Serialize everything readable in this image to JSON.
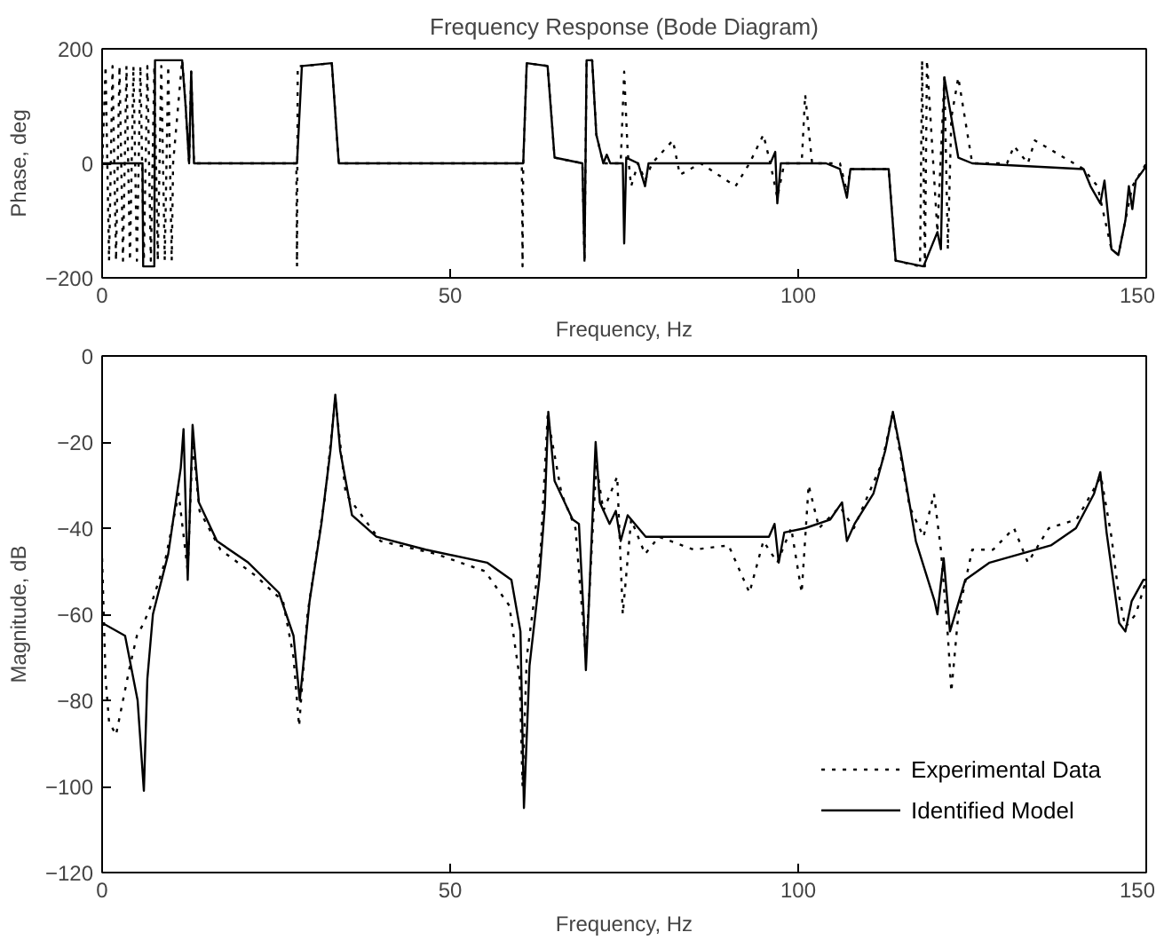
{
  "chart_data": [
    {
      "type": "line",
      "title": "Frequency Response (Bode Diagram)",
      "xlabel": "Frequency, Hz",
      "ylabel": "Phase, deg",
      "xlim": [
        0,
        150
      ],
      "ylim": [
        -200,
        200
      ],
      "xticks": [
        0,
        50,
        100,
        150
      ],
      "yticks": [
        -200,
        0,
        200
      ],
      "grid": false,
      "legend": false,
      "series": [
        {
          "color": "#000000",
          "line_style": "dotted",
          "x": [
            0,
            0.5,
            1,
            1.5,
            2,
            2.5,
            3,
            3.5,
            4,
            4.5,
            5,
            5.5,
            6,
            6.5,
            7,
            7.5,
            8,
            8.5,
            9,
            9.5,
            10,
            10.2,
            11.5,
            12,
            12.5,
            12.8,
            13.2,
            27.9,
            28,
            28.1,
            29,
            33,
            34,
            60.3,
            60.4,
            60.5,
            61,
            64,
            65,
            69,
            69.3,
            69.6,
            70.4,
            71,
            72,
            74.5,
            75,
            75.5,
            76,
            77,
            78,
            79,
            82,
            83,
            86,
            91,
            93,
            95,
            96,
            97,
            98,
            100.5,
            101,
            102,
            106,
            107,
            107.5,
            113,
            114,
            117.5,
            117.8,
            118.2,
            118.5,
            120,
            121,
            121.5,
            122,
            123,
            125,
            130,
            131,
            133,
            134,
            141,
            143,
            145,
            146,
            147,
            148,
            150
          ],
          "values": [
            -10,
            170,
            -170,
            170,
            -170,
            170,
            -170,
            170,
            -170,
            170,
            -170,
            170,
            -170,
            170,
            -170,
            170,
            -170,
            170,
            -170,
            170,
            -170,
            0,
            180,
            100,
            0,
            160,
            0,
            0,
            -180,
            170,
            170,
            175,
            0,
            0,
            -180,
            0,
            175,
            170,
            10,
            0,
            -170,
            180,
            180,
            50,
            0,
            0,
            160,
            20,
            -40,
            0,
            -30,
            0,
            40,
            -20,
            0,
            -40,
            0,
            50,
            0,
            -60,
            0,
            0,
            120,
            0,
            0,
            -50,
            -10,
            -10,
            -170,
            -180,
            180,
            -180,
            180,
            -120,
            150,
            -150,
            80,
            150,
            0,
            0,
            30,
            0,
            40,
            -10,
            -40,
            -150,
            -160,
            -100,
            -40,
            0
          ]
        },
        {
          "color": "#000000",
          "line_style": "solid",
          "x": [
            0,
            5.8,
            5.9,
            7.5,
            7.6,
            11.5,
            12,
            12.5,
            12.8,
            13.2,
            28,
            28.7,
            33,
            34,
            60.5,
            61,
            64,
            65,
            69,
            69.3,
            69.6,
            70.4,
            71,
            72,
            72.5,
            73,
            74.8,
            75,
            75.3,
            77,
            78,
            78.5,
            96,
            96.7,
            97,
            97.5,
            104,
            106,
            107,
            107.5,
            113,
            114,
            118,
            120,
            120.5,
            121,
            122,
            123,
            125,
            141,
            142,
            143.4,
            144,
            145,
            146,
            147,
            147.5,
            148,
            148.5,
            150
          ],
          "values": [
            0,
            0,
            -180,
            -180,
            180,
            180,
            100,
            0,
            160,
            0,
            0,
            170,
            175,
            0,
            0,
            175,
            170,
            10,
            0,
            -170,
            180,
            180,
            50,
            0,
            15,
            0,
            0,
            -140,
            10,
            0,
            -40,
            0,
            0,
            20,
            -70,
            0,
            0,
            -10,
            -60,
            -10,
            -10,
            -170,
            -180,
            -120,
            -150,
            150,
            80,
            10,
            0,
            -10,
            -40,
            -70,
            -30,
            -150,
            -160,
            -100,
            -40,
            -80,
            -30,
            -5
          ]
        }
      ]
    },
    {
      "type": "line",
      "xlabel": "Frequency, Hz",
      "ylabel": "Magnitude, dB",
      "xlim": [
        0,
        150
      ],
      "ylim": [
        -120,
        0
      ],
      "xticks": [
        0,
        50,
        100,
        150
      ],
      "yticks": [
        -120,
        -100,
        -80,
        -60,
        -40,
        -20,
        0
      ],
      "grid": false,
      "legend": "bottom right",
      "series": [
        {
          "name": "Experimental Data",
          "color": "#000000",
          "line_style": "dotted",
          "x": [
            0,
            0.5,
            1,
            2,
            3,
            4,
            5,
            6,
            7,
            9,
            11,
            12.3,
            13,
            14,
            17,
            22,
            26,
            27.5,
            28.3,
            29.5,
            32,
            33.5,
            35,
            40,
            48,
            55,
            58.5,
            60,
            60.4,
            61,
            63,
            64,
            66,
            68,
            69.5,
            71,
            72,
            73,
            74,
            74.8,
            76,
            78,
            80,
            85,
            90,
            93,
            95,
            97,
            99,
            100.5,
            101.5,
            103,
            106,
            108,
            112,
            113.6,
            116,
            118,
            119.5,
            120.5,
            121.5,
            122,
            123,
            125,
            128,
            131,
            133,
            136,
            140,
            143.5,
            145,
            146,
            147,
            148.5,
            150
          ],
          "values": [
            -47,
            -75,
            -85,
            -88,
            -80,
            -72,
            -65,
            -62,
            -58,
            -48,
            -32,
            -50,
            -20,
            -36,
            -45,
            -51,
            -57,
            -70,
            -86,
            -60,
            -33,
            -10,
            -32,
            -43,
            -46,
            -50,
            -58,
            -75,
            -100,
            -70,
            -45,
            -14,
            -32,
            -40,
            -70,
            -25,
            -36,
            -32,
            -28,
            -60,
            -38,
            -46,
            -42,
            -45,
            -44,
            -55,
            -43,
            -48,
            -40,
            -55,
            -30,
            -40,
            -35,
            -40,
            -25,
            -13,
            -35,
            -42,
            -32,
            -45,
            -65,
            -78,
            -60,
            -45,
            -45,
            -40,
            -48,
            -40,
            -38,
            -28,
            -42,
            -55,
            -63,
            -60,
            -52
          ]
        },
        {
          "name": "Identified Model",
          "color": "#000000",
          "line_style": "solid",
          "x": [
            0,
            3.3,
            5.1,
            6.0,
            6.5,
            7.3,
            9.5,
            11.3,
            11.7,
            12.3,
            13.0,
            13.9,
            16.5,
            21,
            25.4,
            27.5,
            28.4,
            29.8,
            31.5,
            32.8,
            33.5,
            34.2,
            35.9,
            39.4,
            46.5,
            55.3,
            58.8,
            60.1,
            60.6,
            61.4,
            62.8,
            63.6,
            64.1,
            65,
            67.6,
            68.5,
            69.2,
            69.5,
            70,
            70.9,
            71.5,
            72.9,
            73.8,
            74.5,
            75.5,
            78.1,
            83.4,
            95.8,
            96.6,
            97.2,
            98,
            101,
            104.6,
            106.3,
            107,
            108.1,
            110.8,
            112.5,
            113.6,
            114.7,
            116.9,
            119.6,
            120,
            120.9,
            121.8,
            124,
            127.5,
            136.3,
            139.9,
            142.5,
            143.4,
            144.3,
            146.1,
            147,
            147.9,
            149.6,
            150
          ],
          "values": [
            -62,
            -65,
            -80,
            -101,
            -75,
            -60,
            -46,
            -26,
            -17,
            -52,
            -16,
            -34,
            -43,
            -48,
            -55,
            -65,
            -80,
            -57,
            -39,
            -22,
            -9,
            -22,
            -37,
            -42,
            -45,
            -48,
            -52,
            -64,
            -105,
            -72,
            -52,
            -35,
            -13,
            -29,
            -38,
            -39,
            -61,
            -73,
            -55,
            -20,
            -34,
            -39,
            -36,
            -43,
            -37,
            -42,
            -42,
            -42,
            -39,
            -48,
            -41,
            -40,
            -38,
            -34,
            -43,
            -39,
            -32,
            -22,
            -13,
            -22,
            -43,
            -57,
            -60,
            -47,
            -64,
            -52,
            -48,
            -44,
            -40,
            -32,
            -27,
            -41,
            -62,
            -64,
            -57,
            -52,
            -52
          ]
        }
      ]
    }
  ]
}
